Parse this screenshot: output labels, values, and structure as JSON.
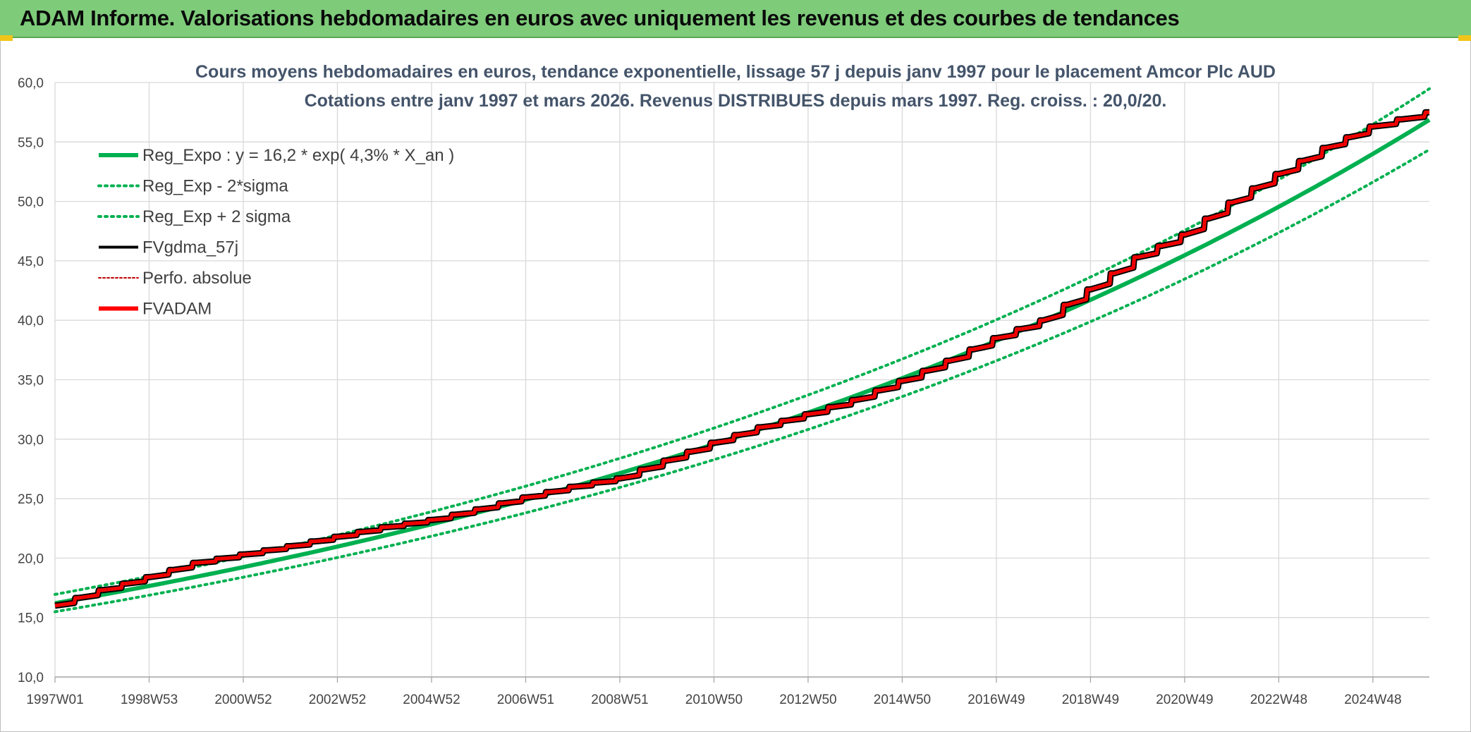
{
  "header": {
    "title": "ADAM Informe. Valorisations hebdomadaires en euros avec uniquement les revenus et des courbes de tendances"
  },
  "colors": {
    "header_bg": "#7ecb7a",
    "reg_expo": "#00b050",
    "fvadam": "#ff0000",
    "fvgdma": "#000000",
    "title_text": "#44546a"
  },
  "chart_data": {
    "type": "line",
    "title": "Cours moyens hebdomadaires en euros, tendance exponentielle, lissage 57 j depuis janv 1997 pour le placement Amcor Plc AUD",
    "subtitle": "Cotations entre janv 1997 et mars 2026. Revenus DISTRIBUES depuis mars 1997. Reg. croiss. : 20,0/20.",
    "xlabel": "",
    "ylabel": "",
    "ylim": [
      10,
      60
    ],
    "yticks": [
      "60,0",
      "55,0",
      "50,0",
      "45,0",
      "40,0",
      "35,0",
      "30,0",
      "25,0",
      "20,0",
      "15,0",
      "10,0"
    ],
    "xlim": [
      1997.0,
      2026.2
    ],
    "x_tick_labels": [
      "1997W01",
      "1998W53",
      "2000W52",
      "2002W52",
      "2004W52",
      "2006W51",
      "2008W51",
      "2010W50",
      "2012W50",
      "2014W50",
      "2016W49",
      "2018W49",
      "2020W49",
      "2022W48",
      "2024W48"
    ],
    "x_tick_years": [
      1997.0,
      1999.0,
      2001.0,
      2003.0,
      2005.0,
      2007.0,
      2009.0,
      2011.0,
      2013.0,
      2015.0,
      2017.0,
      2019.0,
      2021.0,
      2023.0,
      2025.0
    ],
    "grid": true,
    "legend_position": "top-left",
    "regression": {
      "formula": "y = 16,2 * exp( 4,3% *  X_an )",
      "a": 16.2,
      "rate": 0.043,
      "band_factor_upper": 1.046,
      "band_factor_lower": 0.956
    },
    "series": [
      {
        "name": "Reg_Expo : y = 16,2 * exp( 4,3% *  X_an )",
        "style": "solid-thick",
        "color": "#00b050",
        "x": [
          1997.0,
          2000.0,
          2005.0,
          2010.0,
          2015.0,
          2020.0,
          2026.2
        ],
        "y": [
          16.2,
          18.5,
          22.9,
          28.4,
          35.2,
          43.6,
          56.6
        ]
      },
      {
        "name": "Reg_Exp - 2*sigma",
        "style": "dotted",
        "color": "#00b050",
        "x": [
          1997.0,
          2000.0,
          2005.0,
          2010.0,
          2015.0,
          2020.0,
          2026.2
        ],
        "y": [
          15.5,
          17.7,
          21.9,
          27.1,
          33.6,
          41.7,
          54.1
        ]
      },
      {
        "name": "Reg_Exp + 2 sigma",
        "style": "dotted",
        "color": "#00b050",
        "x": [
          1997.0,
          2000.0,
          2005.0,
          2010.0,
          2015.0,
          2020.0,
          2026.2
        ],
        "y": [
          16.9,
          19.4,
          24.0,
          29.7,
          36.8,
          45.6,
          59.2
        ]
      },
      {
        "name": "FVgdma_57j",
        "style": "solid",
        "color": "#000000",
        "x": [
          1997.0,
          2000.0,
          2005.0,
          2010.0,
          2015.0,
          2020.0,
          2026.2
        ],
        "y": [
          16.0,
          19.6,
          22.8,
          28.2,
          34.9,
          45.3,
          57.5
        ]
      },
      {
        "name": "Perfo. absolue",
        "style": "dotted-thin",
        "color": "#c00000",
        "x": [
          1997.0,
          2000.0,
          2005.0,
          2010.0,
          2015.0,
          2020.0,
          2026.2
        ],
        "y": [
          16.0,
          19.6,
          22.8,
          28.2,
          34.9,
          45.3,
          57.5
        ]
      },
      {
        "name": "FVADAM",
        "style": "solid-thick-stepped",
        "color": "#ff0000",
        "x": [
          1997.0,
          1998.0,
          1999.0,
          2000.0,
          2001.0,
          2002.0,
          2003.0,
          2004.0,
          2005.0,
          2006.0,
          2007.0,
          2008.0,
          2009.0,
          2010.0,
          2011.0,
          2012.0,
          2013.0,
          2014.0,
          2015.0,
          2016.0,
          2017.0,
          2018.0,
          2019.0,
          2020.0,
          2021.0,
          2022.0,
          2023.0,
          2024.0,
          2025.0,
          2026.2
        ],
        "y": [
          16.0,
          17.3,
          18.4,
          19.6,
          20.3,
          21.0,
          21.8,
          22.6,
          23.2,
          24.1,
          25.1,
          26.0,
          26.7,
          28.2,
          29.7,
          31.0,
          32.1,
          33.3,
          34.9,
          36.6,
          38.5,
          40.0,
          42.6,
          45.3,
          47.2,
          49.9,
          52.3,
          54.5,
          56.3,
          57.5
        ]
      }
    ]
  }
}
